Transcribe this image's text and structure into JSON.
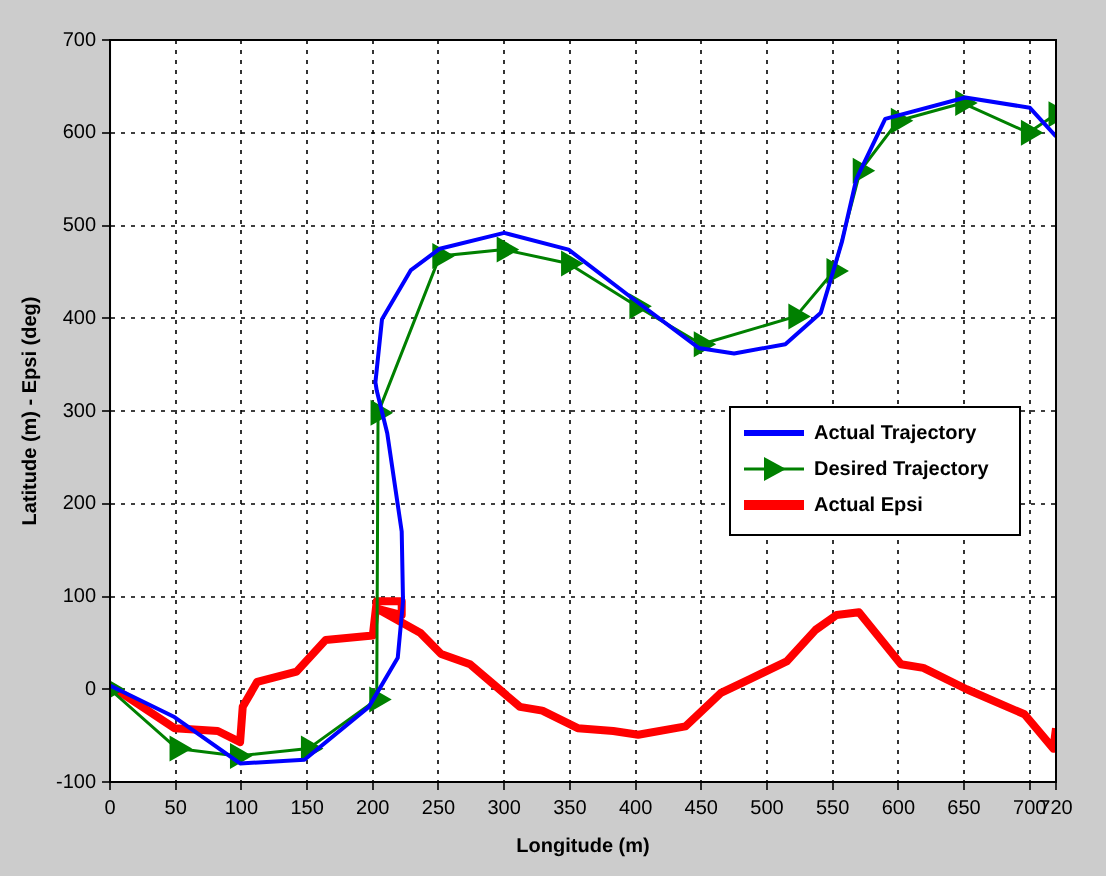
{
  "chart_data": {
    "type": "line",
    "xlabel": "Longitude (m)",
    "ylabel": "Latitude (m) - Epsi (deg)",
    "xlim": [
      0,
      720
    ],
    "xticks": [
      0,
      50,
      100,
      150,
      200,
      250,
      300,
      350,
      400,
      450,
      500,
      550,
      600,
      650,
      700,
      720
    ],
    "ylim": [
      -100,
      700
    ],
    "yticks": [
      -100,
      0,
      100,
      200,
      300,
      400,
      500,
      600,
      700
    ],
    "grid": true,
    "legend": "right",
    "line_style": "solid",
    "series": [
      {
        "name": "Actual Trajectory",
        "color": "#0000ff",
        "marker": "none",
        "x": [
          0,
          49,
          99,
          148,
          197,
          219,
          223,
          222,
          211,
          203,
          202,
          207,
          229,
          251,
          300,
          349,
          398,
          448,
          475,
          514,
          541,
          557,
          568,
          590,
          651,
          700,
          720
        ],
        "values": [
          4,
          -30,
          -80,
          -76,
          -19,
          34,
          95,
          170,
          276,
          322,
          331,
          399,
          452,
          475,
          492,
          474,
          421,
          368,
          362,
          372,
          406,
          482,
          550,
          615,
          638,
          627,
          596
        ]
      },
      {
        "name": "Desired Trajectory",
        "color": "#008000",
        "marker": "triangle",
        "x": [
          0,
          51,
          97,
          151,
          203,
          204,
          251,
          300,
          349,
          401,
          450,
          522,
          551,
          571,
          600,
          649,
          699,
          720
        ],
        "values": [
          0,
          -64,
          -72,
          -64,
          -11,
          298,
          467,
          474,
          459,
          413,
          372,
          402,
          451,
          559,
          613,
          632,
          600,
          620
        ]
      },
      {
        "name": "Actual Epsi",
        "color": "#ff0000",
        "marker": "none",
        "x": [
          0,
          49,
          82,
          99,
          101,
          112,
          142,
          164,
          200,
          203,
          222,
          222,
          203,
          236,
          252,
          274,
          312,
          329,
          356,
          383,
          402,
          438,
          465,
          487,
          515,
          537,
          553,
          570,
          602,
          619,
          652,
          696,
          718,
          720
        ],
        "values": [
          4,
          -42,
          -45,
          -57,
          -19,
          8,
          19,
          53,
          58,
          95,
          95,
          80,
          87,
          61,
          38,
          27,
          -19,
          -23,
          -42,
          -45,
          -49,
          -40,
          -4,
          11,
          30,
          64,
          80,
          83,
          27,
          23,
          0,
          -27,
          -64,
          -42
        ]
      }
    ]
  }
}
